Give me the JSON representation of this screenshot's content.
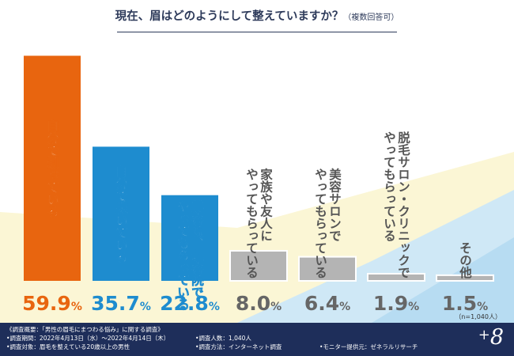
{
  "header": {
    "title": "現在、眉はどのようにして整えていますか？",
    "subtitle": "（複数回答可）"
  },
  "chart_data": {
    "type": "bar",
    "title": "現在、眉はどのようにして整えていますか？（複数回答可）",
    "xlabel": "",
    "ylabel": "",
    "ylim": [
      0,
      60
    ],
    "unit": "%",
    "grid": false,
    "legend": "none",
    "categories": [
      [
        "自分で剃っている"
      ],
      [
        "自分で抜いている"
      ],
      [
        "美容院、理容院で",
        "やってもらっている"
      ],
      [
        "家族や友人に",
        "やってもらっている"
      ],
      [
        "美容サロンで",
        "やってもらっている"
      ],
      [
        "脱毛サロン・クリニックで",
        "やってもらっている"
      ],
      [
        "その他"
      ]
    ],
    "values": [
      59.9,
      35.7,
      22.8,
      8.0,
      6.4,
      1.9,
      1.5
    ],
    "value_labels": [
      {
        "main": "59.9",
        "unit": "%"
      },
      {
        "main": "35.7",
        "unit": "%"
      },
      {
        "main": "22.8",
        "unit": "%"
      },
      {
        "main": "8.0",
        "unit": "%"
      },
      {
        "main": "6.4",
        "unit": "%"
      },
      {
        "main": "1.9",
        "unit": "%"
      },
      {
        "main": "1.5",
        "unit": "%"
      }
    ],
    "colors": [
      "#e8650f",
      "#1e8ccf",
      "#1e8ccf",
      "#b4b4b4",
      "#b4b4b4",
      "#b4b4b4",
      "#b4b4b4"
    ],
    "label_colors": [
      "#e8650f",
      "#1e8ccf",
      "#1e8ccf",
      "#666666",
      "#666666",
      "#666666",
      "#666666"
    ],
    "sample_note": "（n=1,040人）"
  },
  "footer": {
    "summary": "《調査概要：「男性の眉毛にまつわる悩み」に関する調査》",
    "period": "•調査期間：2022年4月13日（水）～2022年4月14日（木）",
    "target": "•調査対象：眉毛を整えている20歳以上の男性",
    "respondents": "•調査人数：1,040人",
    "method": "•調査方法：インターネット調査",
    "provider": "•モニター提供元：ゼネラルリサーチ",
    "brand_plus": "+",
    "brand_num": "8"
  },
  "colors": {
    "accent_orange": "#e8650f",
    "accent_blue": "#1e8ccf",
    "neutral_gray": "#b4b4b4",
    "footer_navy": "#1e2e5a",
    "bg_yellow": "#fbf6d5",
    "bg_lightblue": "#cfe8f6"
  }
}
